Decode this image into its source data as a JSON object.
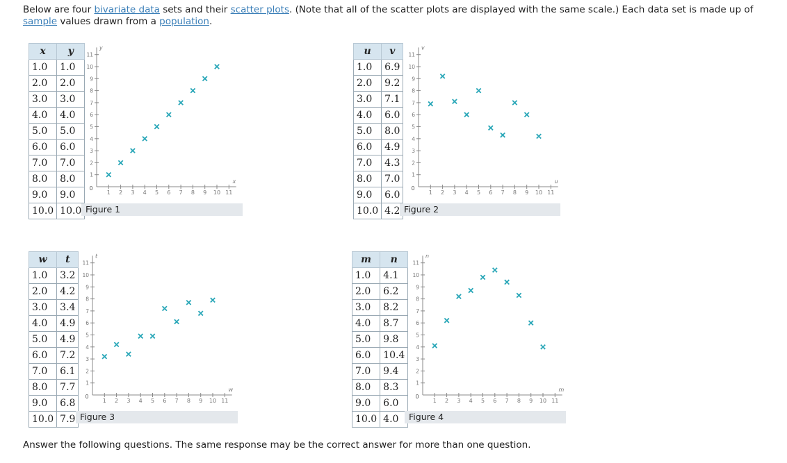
{
  "intro": {
    "t1": "Below are four ",
    "link1": "bivariate data",
    "t2": " sets and their ",
    "link2": "scatter plots",
    "t3": ". (Note that all of the scatter plots are displayed with the same scale.) Each data set is made up of ",
    "link3": "sample",
    "t4": " values drawn from a ",
    "link4": "population",
    "t5": "."
  },
  "footer": "Answer the following questions. The same response may be the correct answer for more than one question.",
  "colors": {
    "marker": "#2aa7b8",
    "axis": "#888888",
    "header_bg": "#d6e5ef",
    "caption_bg": "#e4e8ec"
  },
  "figures": [
    {
      "caption": "Figure 1",
      "xname": "x",
      "yname": "y",
      "rows": [
        [
          "1.0",
          "1.0"
        ],
        [
          "2.0",
          "2.0"
        ],
        [
          "3.0",
          "3.0"
        ],
        [
          "4.0",
          "4.0"
        ],
        [
          "5.0",
          "5.0"
        ],
        [
          "6.0",
          "6.0"
        ],
        [
          "7.0",
          "7.0"
        ],
        [
          "8.0",
          "8.0"
        ],
        [
          "9.0",
          "9.0"
        ],
        [
          "10.0",
          "10.0"
        ]
      ]
    },
    {
      "caption": "Figure 2",
      "xname": "u",
      "yname": "v",
      "rows": [
        [
          "1.0",
          "6.9"
        ],
        [
          "2.0",
          "9.2"
        ],
        [
          "3.0",
          "7.1"
        ],
        [
          "4.0",
          "6.0"
        ],
        [
          "5.0",
          "8.0"
        ],
        [
          "6.0",
          "4.9"
        ],
        [
          "7.0",
          "4.3"
        ],
        [
          "8.0",
          "7.0"
        ],
        [
          "9.0",
          "6.0"
        ],
        [
          "10.0",
          "4.2"
        ]
      ]
    },
    {
      "caption": "Figure 3",
      "xname": "w",
      "yname": "t",
      "rows": [
        [
          "1.0",
          "3.2"
        ],
        [
          "2.0",
          "4.2"
        ],
        [
          "3.0",
          "3.4"
        ],
        [
          "4.0",
          "4.9"
        ],
        [
          "5.0",
          "4.9"
        ],
        [
          "6.0",
          "7.2"
        ],
        [
          "7.0",
          "6.1"
        ],
        [
          "8.0",
          "7.7"
        ],
        [
          "9.0",
          "6.8"
        ],
        [
          "10.0",
          "7.9"
        ]
      ]
    },
    {
      "caption": "Figure 4",
      "xname": "m",
      "yname": "n",
      "rows": [
        [
          "1.0",
          "4.1"
        ],
        [
          "2.0",
          "6.2"
        ],
        [
          "3.0",
          "8.2"
        ],
        [
          "4.0",
          "8.7"
        ],
        [
          "5.0",
          "9.8"
        ],
        [
          "6.0",
          "10.4"
        ],
        [
          "7.0",
          "9.4"
        ],
        [
          "8.0",
          "8.3"
        ],
        [
          "9.0",
          "6.0"
        ],
        [
          "10.0",
          "4.0"
        ]
      ]
    }
  ],
  "axis_ticks": [
    "0",
    "1",
    "2",
    "3",
    "4",
    "5",
    "6",
    "7",
    "8",
    "9",
    "10",
    "11"
  ]
}
